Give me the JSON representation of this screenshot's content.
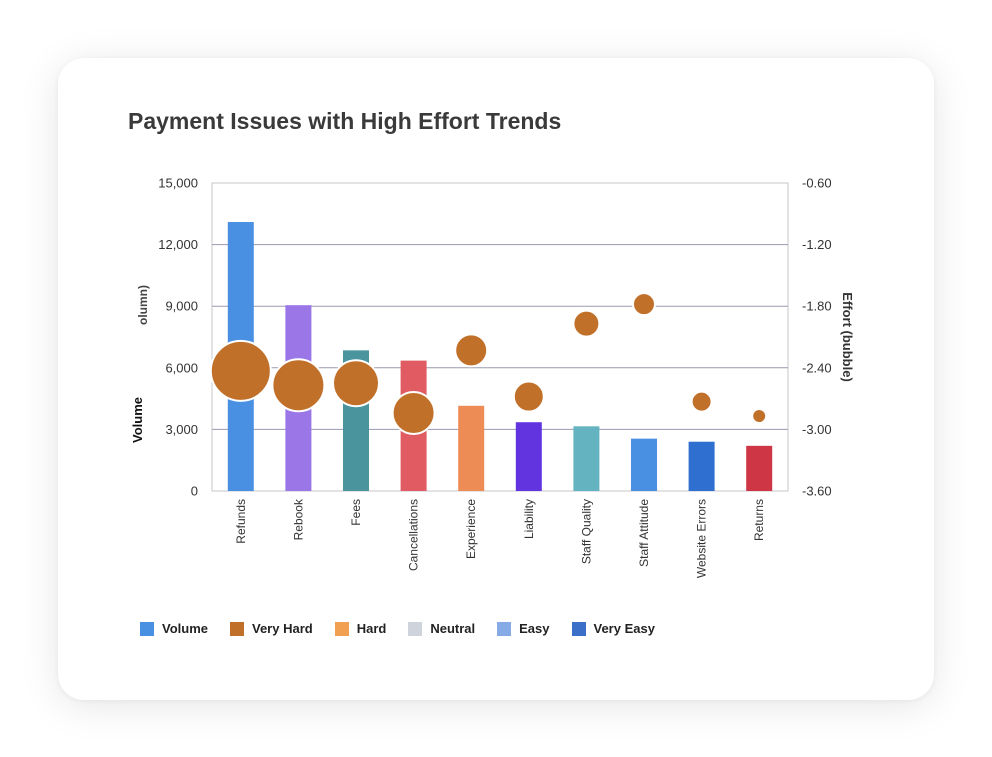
{
  "chart_data": {
    "type": "bar",
    "title": "Payment Issues with High Effort Trends",
    "ylabel": "Volume",
    "ylabel_fragment": "olumn)",
    "y2label": "Effort (bubble)",
    "categories": [
      "Refunds",
      "Rebook",
      "Fees",
      "Cancellations",
      "Experience",
      "Liability",
      "Staff Quality",
      "Staff Attitude",
      "Website Errors",
      "Returns"
    ],
    "bar_colors": [
      "#4a90e2",
      "#9b76e6",
      "#4a949e",
      "#e05c62",
      "#ee8c56",
      "#6234e0",
      "#63b3c0",
      "#4a90e2",
      "#2f6fd0",
      "#cf3645"
    ],
    "series": [
      {
        "name": "Volume",
        "kind": "bar",
        "axis": "left",
        "values": [
          13100,
          9050,
          6850,
          6350,
          4150,
          3350,
          3150,
          2550,
          2400,
          2200
        ]
      },
      {
        "name": "Very Hard",
        "kind": "bubble",
        "axis": "right",
        "values": [
          -2.43,
          -2.57,
          -2.55,
          -2.84,
          -2.23,
          -2.68,
          -1.97,
          -1.78,
          -2.73,
          -2.87
        ],
        "size": [
          30,
          26,
          23,
          21,
          16,
          15,
          13,
          11,
          10,
          7
        ]
      }
    ],
    "ylim": [
      0,
      15000
    ],
    "y2lim": [
      -3.6,
      -0.6
    ],
    "yticks": [
      "0",
      "3,000",
      "6,000",
      "9,000",
      "12,000",
      "15,000"
    ],
    "y2ticks": [
      "-3.60",
      "-3.00",
      "-2.40",
      "-1.80",
      "-1.20",
      "-0.60"
    ],
    "legend": [
      {
        "name": "Volume",
        "color": "#4a90e2"
      },
      {
        "name": "Very Hard",
        "color": "#c1702a"
      },
      {
        "name": "Hard",
        "color": "#f0a050"
      },
      {
        "name": "Neutral",
        "color": "#cfd3dc"
      },
      {
        "name": "Easy",
        "color": "#86aae6"
      },
      {
        "name": "Very Easy",
        "color": "#3c6fc8"
      }
    ],
    "bubble_color": "#c1702a",
    "grid": true,
    "legend_position": "bottom-left"
  }
}
